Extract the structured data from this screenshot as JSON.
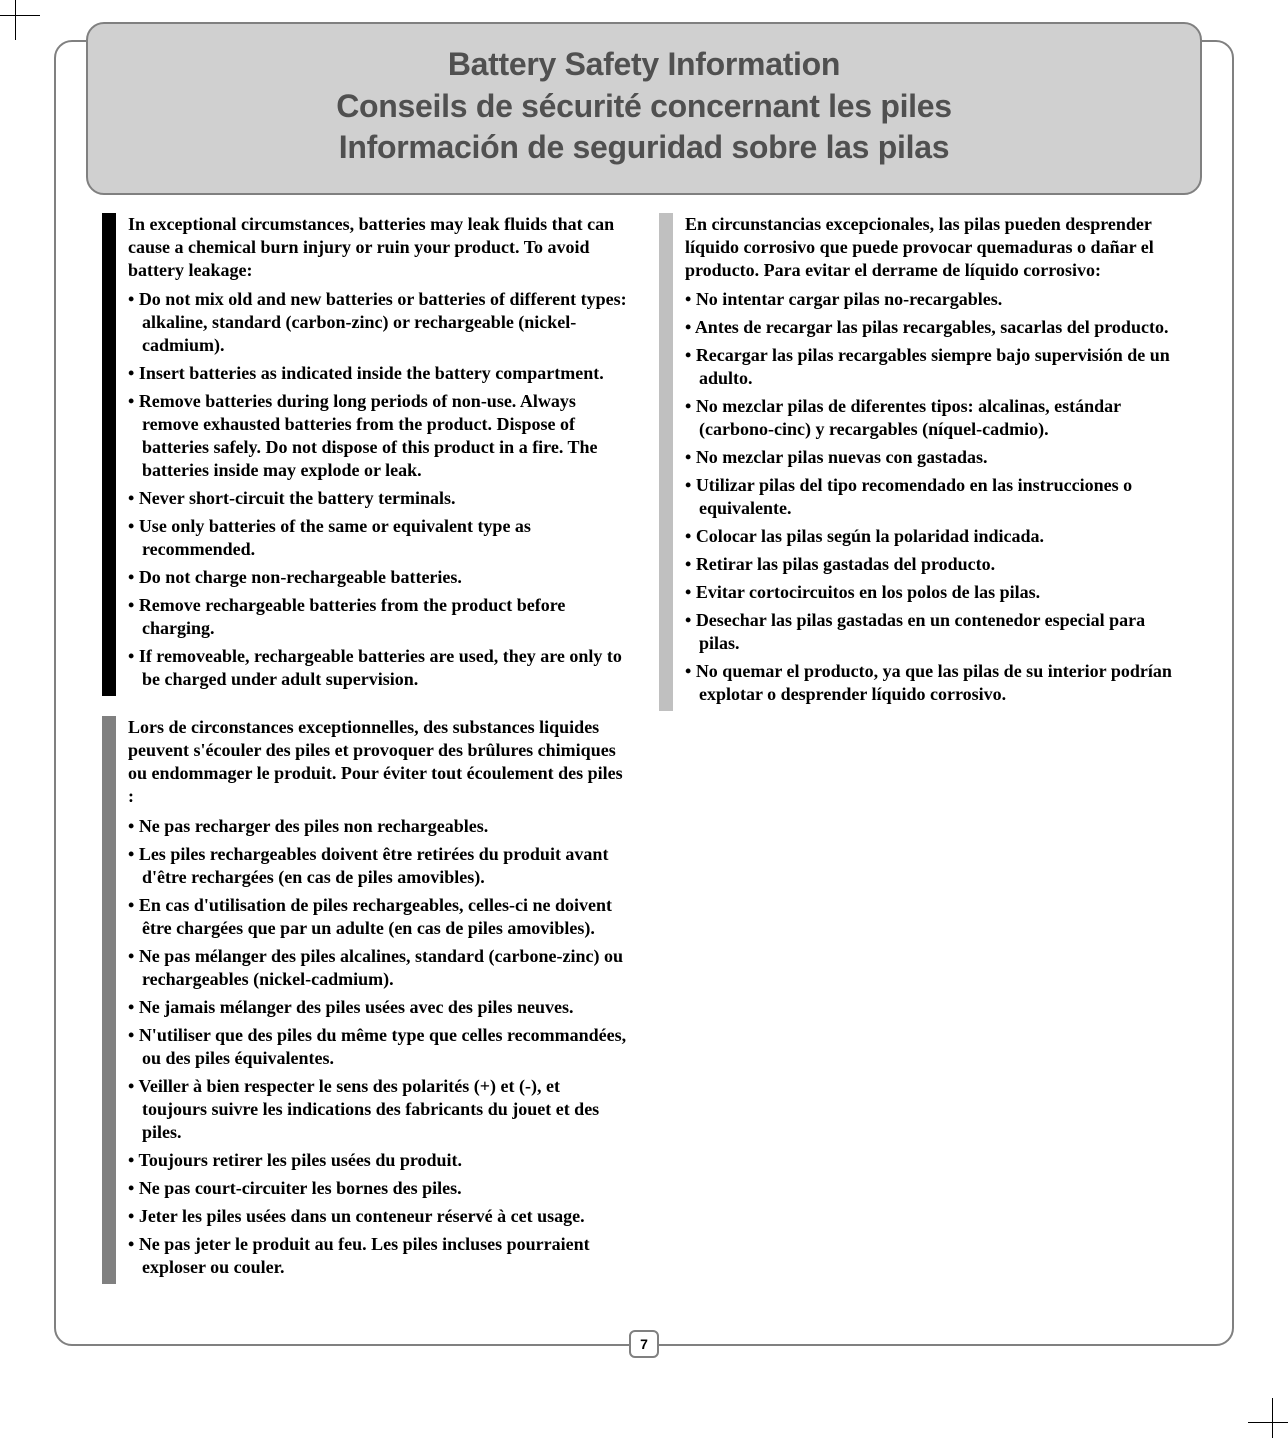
{
  "title": {
    "en": "Battery Safety Information",
    "fr": "Conseils de sécurité concernant les piles",
    "es": "Información de seguridad sobre las pilas"
  },
  "english": {
    "intro": "In exceptional circumstances, batteries may leak fluids that can cause a chemical burn injury or ruin your product. To avoid battery leakage:",
    "items": [
      "Do not mix old and new batteries or batteries of different types: alkaline, standard (carbon-zinc) or rechargeable (nickel-cadmium).",
      "Insert batteries as indicated inside the battery compartment.",
      "Remove batteries during long periods of non-use. Always remove exhausted batteries from the product. Dispose of batteries safely. Do not dispose of this product in a fire. The batteries inside may explode or leak.",
      "Never short-circuit the battery terminals.",
      "Use only batteries of the same or equivalent type as recommended.",
      "Do not charge non-rechargeable batteries.",
      "Remove rechargeable batteries from the product before charging.",
      "If removeable, rechargeable batteries are used, they are only to be charged under adult supervision."
    ]
  },
  "french": {
    "intro": "Lors de circonstances exceptionnelles, des substances liquides peuvent s'écouler des piles et provoquer des brûlures chimiques ou endommager le produit. Pour éviter tout écoulement des piles :",
    "items": [
      "Ne pas recharger des piles non rechargeables.",
      "Les piles rechargeables doivent être retirées du produit avant d'être rechargées (en cas de piles amovibles).",
      "En cas d'utilisation de piles rechargeables, celles-ci ne doivent être chargées que par un adulte (en cas de piles amovibles).",
      "Ne pas mélanger des piles alcalines, standard (carbone-zinc) ou rechargeables (nickel-cadmium).",
      "Ne jamais mélanger des piles usées avec des piles neuves.",
      "N'utiliser que des piles du même type que celles recommandées, ou des piles équivalentes.",
      "Veiller à bien respecter le sens des polarités (+) et (-), et toujours suivre les indications des fabricants du jouet et des piles.",
      "Toujours retirer les piles usées du produit.",
      "Ne pas court-circuiter les bornes des piles.",
      "Jeter les piles usées dans un conteneur réservé à cet usage.",
      "Ne pas jeter le produit au feu. Les piles incluses pourraient exploser ou couler."
    ]
  },
  "spanish": {
    "intro": "En circunstancias excepcionales, las pilas pueden desprender líquido corrosivo que puede provocar quemaduras o dañar el producto. Para evitar el derrame de líquido corrosivo:",
    "items": [
      "No intentar cargar pilas no-recargables.",
      "Antes de recargar las pilas recargables, sacarlas del producto.",
      "Recargar las pilas recargables siempre bajo supervisión de un adulto.",
      "No mezclar pilas de diferentes tipos: alcalinas, estándar (carbono-cinc) y recargables (níquel-cadmio).",
      "No mezclar pilas nuevas con gastadas.",
      "Utilizar pilas del tipo recomendado en las instrucciones o equivalente.",
      "Colocar las pilas según la polaridad indicada.",
      "Retirar las pilas gastadas del producto.",
      "Evitar cortocircuitos en los polos de las pilas.",
      "Desechar las pilas gastadas en un contenedor especial para pilas.",
      "No quemar el producto, ya que las pilas de su interior podrían explotar o desprender líquido corrosivo."
    ]
  },
  "page_number": "7",
  "colors": {
    "title_bg": "#d0d0d0",
    "title_text": "#505050",
    "frame_border": "#808080",
    "bar_en": "#000000",
    "bar_fr": "#808080",
    "bar_es": "#c0c0c0"
  }
}
